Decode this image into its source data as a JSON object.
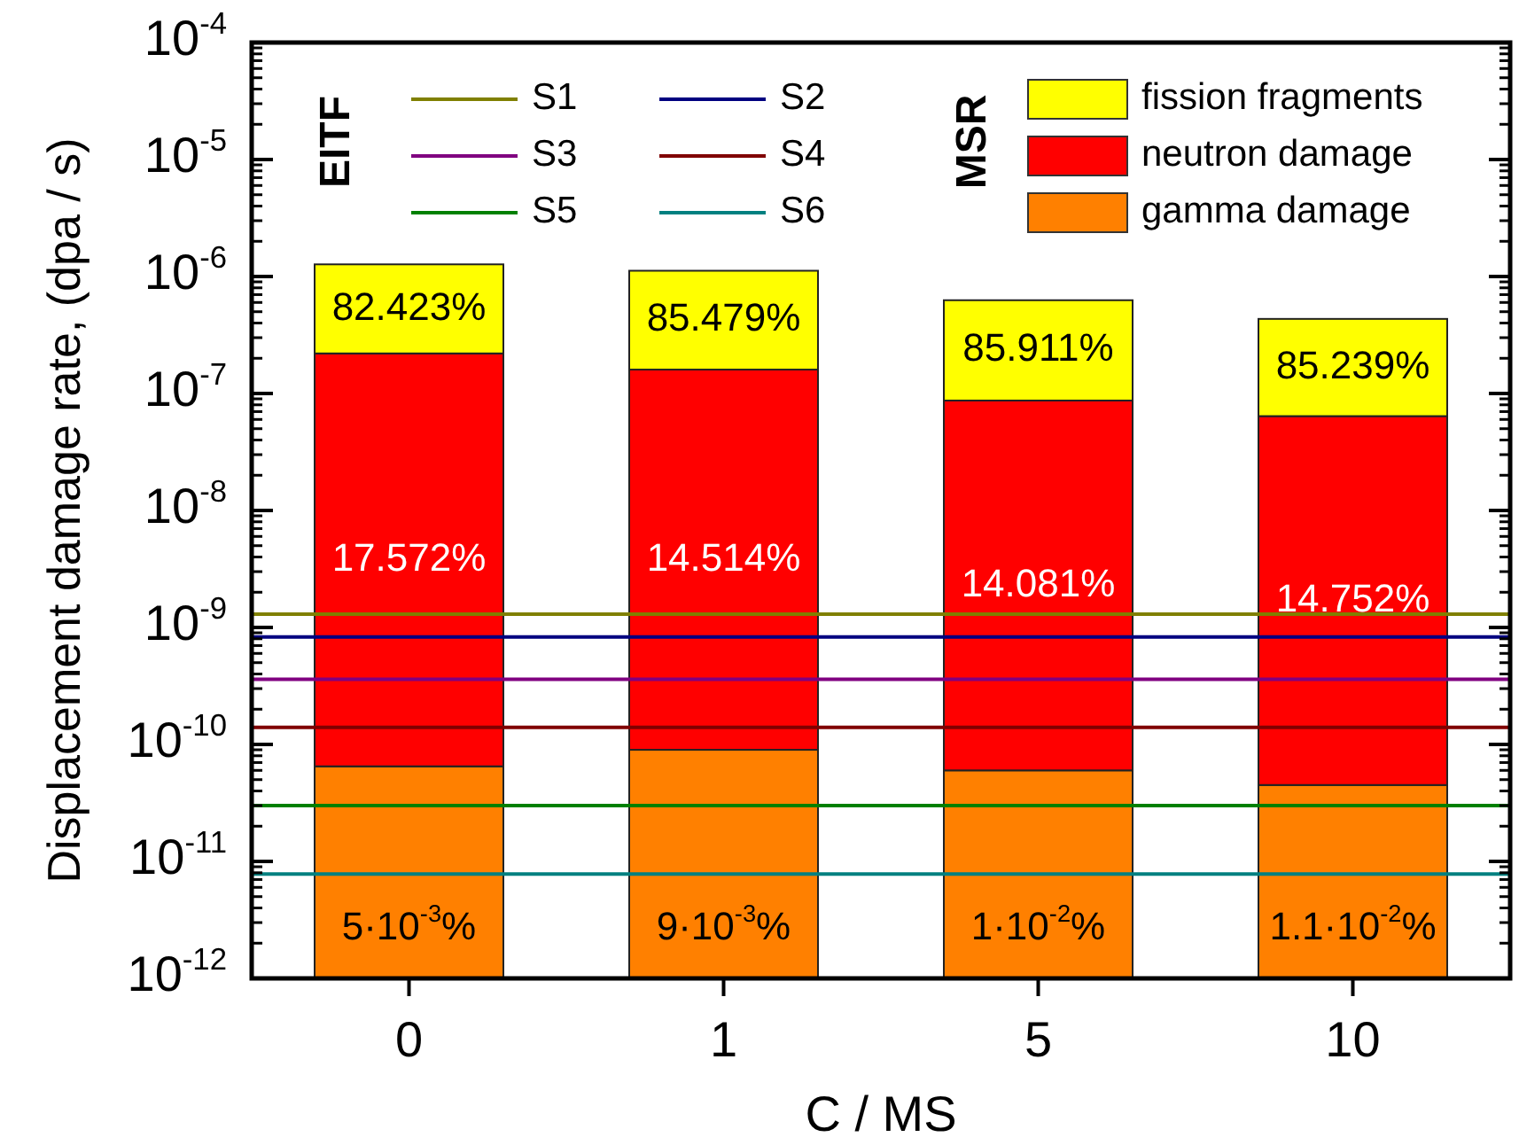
{
  "chart_data": {
    "type": "bar",
    "stacked": true,
    "log": "y",
    "xlabel": "C / MS",
    "ylabel": "Displacement damage rate, (dpa / s)",
    "categories": [
      "0",
      "1",
      "5",
      "10"
    ],
    "series": [
      {
        "name": "gamma damage",
        "color": "#ff8000",
        "values": [
          6.5e-11,
          9e-11,
          6e-11,
          4.5e-11
        ]
      },
      {
        "name": "neutron damage",
        "color": "#ff0000",
        "values": [
          2.2e-07,
          1.6e-07,
          8.7e-08,
          6.4e-08
        ]
      },
      {
        "name": "fission fragments",
        "color": "#ffff00",
        "values": [
          1.05e-06,
          9.6e-07,
          5.4e-07,
          3.7e-07
        ]
      }
    ],
    "ylim": [
      1e-12,
      0.0001
    ],
    "yticks": [
      {
        "value": 1e-12,
        "label": "10$^{-12}$"
      },
      {
        "value": 1e-11,
        "label": "10$^{-11}$"
      },
      {
        "value": 1e-10,
        "label": "10$^{-10}$"
      },
      {
        "value": 1e-09,
        "label": "10$^{-9}$"
      },
      {
        "value": 1e-08,
        "label": "10$^{-8}$"
      },
      {
        "value": 1e-07,
        "label": "10$^{-7}$"
      },
      {
        "value": 1e-06,
        "label": "10$^{-6}$"
      },
      {
        "value": 1e-05,
        "label": "10$^{-5}$"
      },
      {
        "value": 0.0001,
        "label": "10$^{-4}$"
      }
    ],
    "ref_lines": [
      {
        "axis": "y",
        "value": 1.3e-09,
        "label": "S1",
        "color": "#808000"
      },
      {
        "axis": "y",
        "value": 8.3e-10,
        "label": "S2",
        "color": "#000080"
      },
      {
        "axis": "y",
        "value": 3.6e-10,
        "label": "S3",
        "color": "#800080"
      },
      {
        "axis": "y",
        "value": 1.4e-10,
        "label": "S4",
        "color": "#800000"
      },
      {
        "axis": "y",
        "value": 3e-11,
        "label": "S5",
        "color": "#008000"
      },
      {
        "axis": "y",
        "value": 7.8e-12,
        "label": "S6",
        "color": "#008080"
      }
    ],
    "annotations": [
      "EITF",
      "MSR",
      "5·10$^{-3}$%",
      "9·10$^{-3}$%",
      "1·10$^{-2}$%",
      "1.1·10$^{-2}$%",
      "17.572%",
      "14.514%",
      "14.081%",
      "14.752%",
      "82.423%",
      "85.479%",
      "85.911%",
      "85.239%"
    ],
    "legend": "top right",
    "grid": false
  }
}
